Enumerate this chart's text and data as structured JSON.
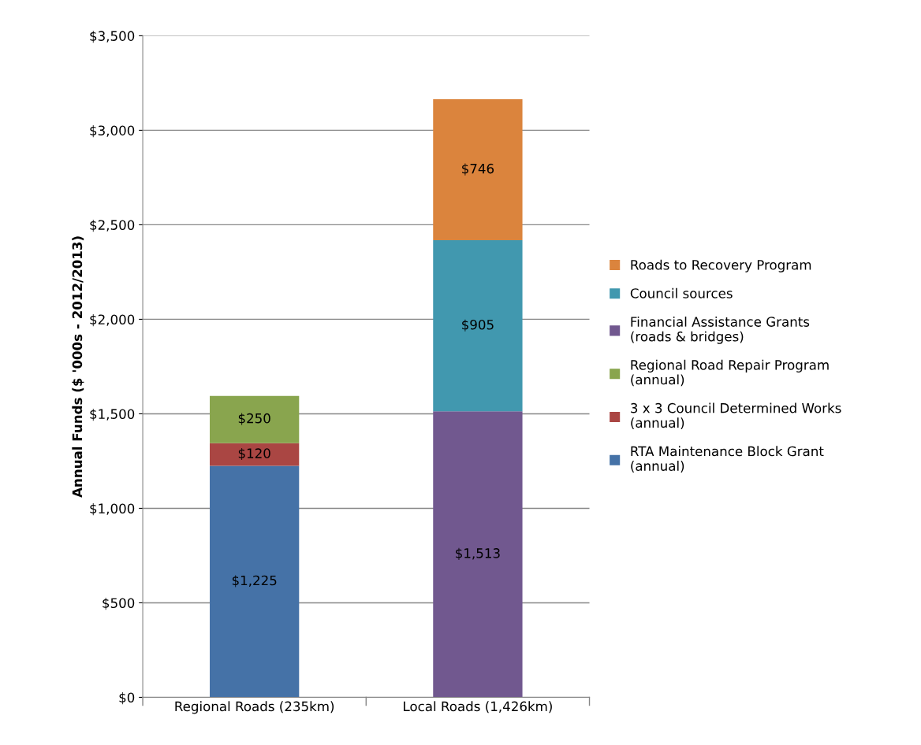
{
  "chart_data": {
    "type": "bar",
    "stacked": true,
    "ylabel": "Annual Funds ($ '000s - 2012/2013)",
    "categories": [
      "Regional Roads (235km)",
      "Local Roads (1,426km)"
    ],
    "series": [
      {
        "name": "RTA Maintenance Block Grant\n(annual)",
        "color": "#4572a7",
        "values": [
          1225,
          null
        ],
        "value_labels": [
          "$1,225",
          null
        ]
      },
      {
        "name": "3 x 3 Council Determined Works\n(annual)",
        "color": "#aa4643",
        "values": [
          120,
          null
        ],
        "value_labels": [
          "$120",
          null
        ]
      },
      {
        "name": "Regional Road Repair Program\n(annual)",
        "color": "#89a54e",
        "values": [
          250,
          null
        ],
        "value_labels": [
          "$250",
          null
        ]
      },
      {
        "name": "Financial Assistance Grants\n(roads & bridges)",
        "color": "#71588f",
        "values": [
          null,
          1513
        ],
        "value_labels": [
          null,
          "$1,513"
        ]
      },
      {
        "name": "Council sources",
        "color": "#4198af",
        "values": [
          null,
          905
        ],
        "value_labels": [
          null,
          "$905"
        ]
      },
      {
        "name": "Roads to Recovery Program",
        "color": "#db843d",
        "values": [
          null,
          746
        ],
        "value_labels": [
          null,
          "$746"
        ]
      }
    ],
    "ylim": [
      0,
      3500
    ],
    "yticks": [
      {
        "value": 0,
        "label": "$0"
      },
      {
        "value": 500,
        "label": "$500"
      },
      {
        "value": 1000,
        "label": "$1,000"
      },
      {
        "value": 1500,
        "label": "$1,500"
      },
      {
        "value": 2000,
        "label": "$2,000"
      },
      {
        "value": 2500,
        "label": "$2,500"
      },
      {
        "value": 3000,
        "label": "$3,000"
      },
      {
        "value": 3500,
        "label": "$3,500"
      }
    ],
    "grid": "y",
    "legend": "right"
  }
}
